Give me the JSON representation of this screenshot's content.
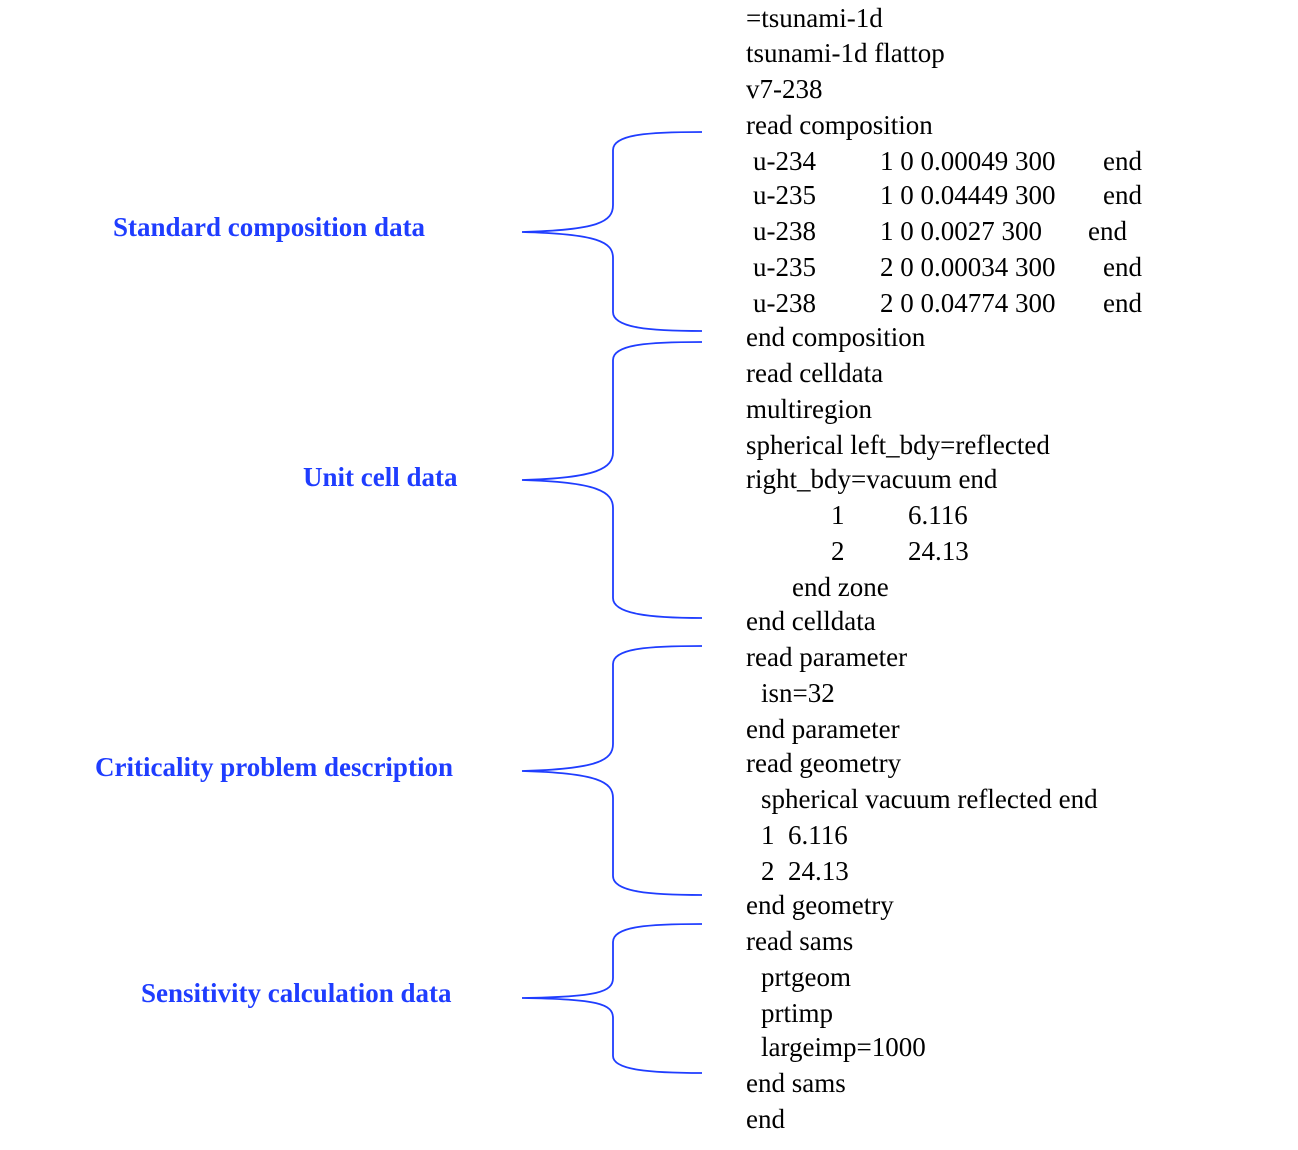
{
  "sections": [
    {
      "label": "Standard composition data"
    },
    {
      "label": "Unit cell data"
    },
    {
      "label": "Criticality problem description"
    },
    {
      "label": "Sensitivity calculation data"
    }
  ],
  "code": {
    "l1": "=tsunami-1d",
    "l2": "tsunami-1d flattop",
    "l3": "v7-238",
    "l4": "read composition",
    "comp_rows": [
      {
        "nuclide": "u-234",
        "values": "1 0 0.00049 300",
        "end": "end"
      },
      {
        "nuclide": "u-235",
        "values": "1 0 0.04449 300",
        "end": "end"
      },
      {
        "nuclide": "u-238",
        "values": "1 0 0.0027 300",
        "end": "end"
      },
      {
        "nuclide": "u-235",
        "values": "2 0 0.00034 300",
        "end": "end"
      },
      {
        "nuclide": "u-238",
        "values": "2 0 0.04774 300",
        "end": "end"
      }
    ],
    "l10": "end composition",
    "l11": "read celldata",
    "l12": "multiregion",
    "l13": "spherical left_bdy=reflected",
    "l14": "right_bdy=vacuum end",
    "zones": [
      {
        "id": "1",
        "radius": "6.116"
      },
      {
        "id": "2",
        "radius": "24.13"
      }
    ],
    "l17": "end zone",
    "l18": "end celldata",
    "l19": "read parameter",
    "l20": "isn=32",
    "l21": "end parameter",
    "l22": "read geometry",
    "l23": "spherical vacuum reflected end",
    "l24": "1  6.116",
    "l25": "2  24.13",
    "l26": "end geometry",
    "l27": "read sams",
    "l28": "prtgeom",
    "l29": "prtimp",
    "l30": "largeimp=1000",
    "l31": "end sams",
    "l32": "end"
  },
  "colors": {
    "label": "#1f3dff",
    "brace": "#1f3dff",
    "code": "#000000"
  }
}
